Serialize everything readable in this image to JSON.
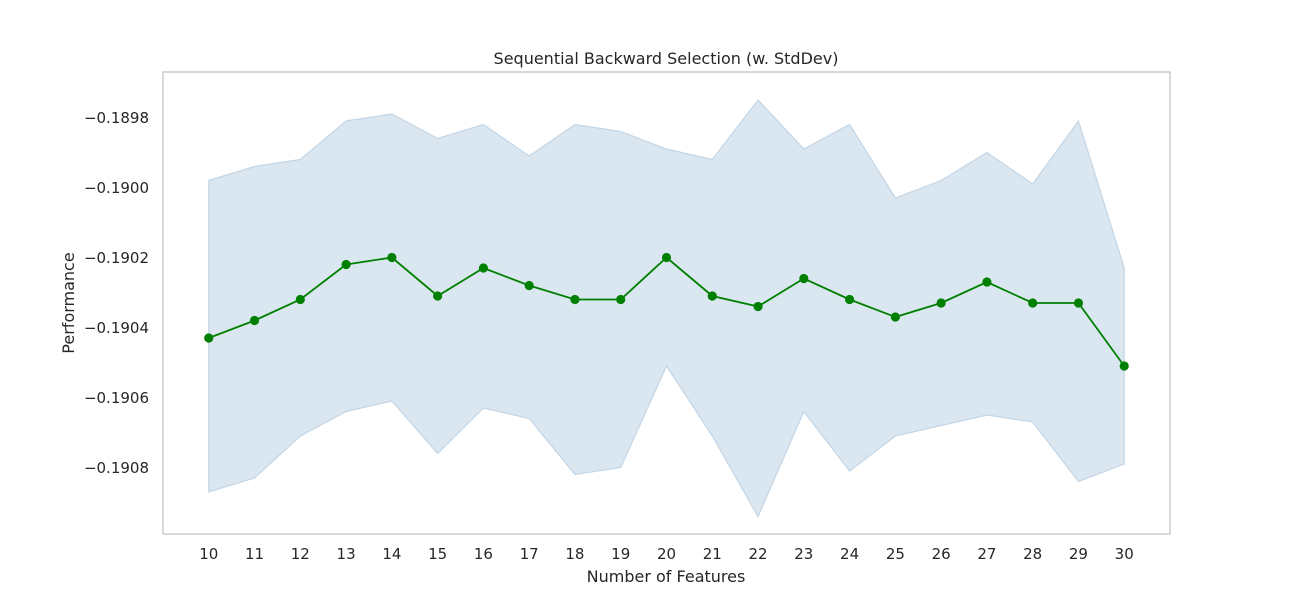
{
  "chart_data": {
    "type": "line",
    "title": "Sequential Backward Selection (w. StdDev)",
    "xlabel": "Number of Features",
    "ylabel": "Performance",
    "x": [
      10,
      11,
      12,
      13,
      14,
      15,
      16,
      17,
      18,
      19,
      20,
      21,
      22,
      23,
      24,
      25,
      26,
      27,
      28,
      29,
      30
    ],
    "x_tick_labels": [
      "10",
      "11",
      "12",
      "13",
      "14",
      "15",
      "16",
      "17",
      "18",
      "19",
      "20",
      "21",
      "22",
      "23",
      "24",
      "25",
      "26",
      "27",
      "28",
      "29",
      "30"
    ],
    "series": [
      {
        "values": [
          -0.19043,
          -0.19038,
          -0.19032,
          -0.19022,
          -0.1902,
          -0.19031,
          -0.19023,
          -0.19028,
          -0.19032,
          -0.19032,
          -0.1902,
          -0.19031,
          -0.19034,
          -0.19026,
          -0.19032,
          -0.19037,
          -0.19033,
          -0.19027,
          -0.19033,
          -0.19033,
          -0.19051
        ],
        "upper": [
          -0.18998,
          -0.18994,
          -0.18992,
          -0.18981,
          -0.18979,
          -0.18986,
          -0.18982,
          -0.18991,
          -0.18982,
          -0.18984,
          -0.18989,
          -0.18992,
          -0.18975,
          -0.18989,
          -0.18982,
          -0.19003,
          -0.18998,
          -0.1899,
          -0.18999,
          -0.18981,
          -0.19023
        ],
        "lower": [
          -0.19087,
          -0.19083,
          -0.19071,
          -0.19064,
          -0.19061,
          -0.19076,
          -0.19063,
          -0.19066,
          -0.19082,
          -0.1908,
          -0.19051,
          -0.19071,
          -0.19094,
          -0.19064,
          -0.19081,
          -0.19071,
          -0.19068,
          -0.19065,
          -0.19067,
          -0.19084,
          -0.19079
        ],
        "line_color": "#008000",
        "band_color": "#dae6f0",
        "band_edge_color": "#c3d6e6"
      }
    ],
    "y_ticks": [
      -0.1898,
      -0.19,
      -0.1902,
      -0.1904,
      -0.1906,
      -0.1908
    ],
    "y_tick_labels": [
      "−0.1898",
      "−0.1900",
      "−0.1902",
      "−0.1904",
      "−0.1906",
      "−0.1908"
    ],
    "xlim": [
      9,
      31
    ],
    "ylim": [
      -0.19099,
      -0.18967
    ],
    "grid": false,
    "frame_color": "#cccccc"
  }
}
